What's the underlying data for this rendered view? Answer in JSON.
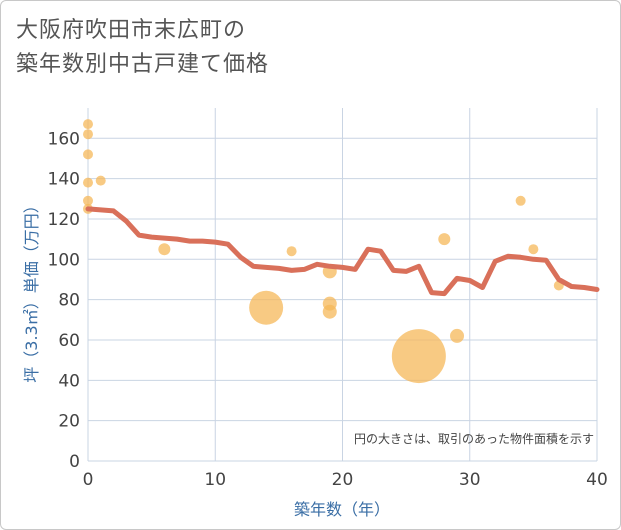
{
  "title_line1": "大阪府吹田市末広町の",
  "title_line2": "築年数別中古戸建て価格",
  "chart_data": {
    "type": "scatter",
    "title": "大阪府吹田市末広町の築年数別中古戸建て価格",
    "xlabel": "築年数（年）",
    "ylabel": "坪（3.3㎡）単価（万円）",
    "xlim": [
      0,
      40
    ],
    "ylim": [
      0,
      175
    ],
    "xticks": [
      0,
      10,
      20,
      30,
      40
    ],
    "yticks": [
      0,
      20,
      40,
      60,
      80,
      100,
      120,
      140,
      160
    ],
    "grid": true,
    "annotation": "円の大きさは、取引のあった物件面積を示す",
    "colors": {
      "bubble": "#f5b85a",
      "line": "#d9705a",
      "grid": "#c9d4e3"
    },
    "bubbles": [
      {
        "x": 0,
        "y": 167,
        "size": 5
      },
      {
        "x": 0,
        "y": 162,
        "size": 5
      },
      {
        "x": 0,
        "y": 152,
        "size": 5
      },
      {
        "x": 0,
        "y": 138,
        "size": 5
      },
      {
        "x": 1,
        "y": 139,
        "size": 5
      },
      {
        "x": 0,
        "y": 129,
        "size": 5
      },
      {
        "x": 0,
        "y": 125,
        "size": 5
      },
      {
        "x": 6,
        "y": 105,
        "size": 6
      },
      {
        "x": 14,
        "y": 76,
        "size": 17
      },
      {
        "x": 16,
        "y": 104,
        "size": 5
      },
      {
        "x": 19,
        "y": 94,
        "size": 7
      },
      {
        "x": 19,
        "y": 78,
        "size": 7
      },
      {
        "x": 19,
        "y": 74,
        "size": 7
      },
      {
        "x": 26,
        "y": 52,
        "size": 27
      },
      {
        "x": 28,
        "y": 110,
        "size": 6
      },
      {
        "x": 29,
        "y": 62,
        "size": 7
      },
      {
        "x": 34,
        "y": 129,
        "size": 5
      },
      {
        "x": 35,
        "y": 105,
        "size": 5
      },
      {
        "x": 37,
        "y": 87,
        "size": 5
      }
    ],
    "trend": [
      {
        "x": 0,
        "y": 125
      },
      {
        "x": 1,
        "y": 124.5
      },
      {
        "x": 2,
        "y": 124
      },
      {
        "x": 3,
        "y": 119
      },
      {
        "x": 4,
        "y": 112
      },
      {
        "x": 5,
        "y": 111
      },
      {
        "x": 6,
        "y": 110.5
      },
      {
        "x": 7,
        "y": 110
      },
      {
        "x": 8,
        "y": 109
      },
      {
        "x": 9,
        "y": 109
      },
      {
        "x": 10,
        "y": 108.5
      },
      {
        "x": 11,
        "y": 107.5
      },
      {
        "x": 12,
        "y": 101
      },
      {
        "x": 13,
        "y": 96.5
      },
      {
        "x": 14,
        "y": 96
      },
      {
        "x": 15,
        "y": 95.5
      },
      {
        "x": 16,
        "y": 94.5
      },
      {
        "x": 17,
        "y": 95
      },
      {
        "x": 18,
        "y": 97.5
      },
      {
        "x": 19,
        "y": 96.5
      },
      {
        "x": 20,
        "y": 96
      },
      {
        "x": 21,
        "y": 95
      },
      {
        "x": 22,
        "y": 105
      },
      {
        "x": 23,
        "y": 104
      },
      {
        "x": 24,
        "y": 94.5
      },
      {
        "x": 25,
        "y": 94
      },
      {
        "x": 26,
        "y": 96.5
      },
      {
        "x": 27,
        "y": 83.5
      },
      {
        "x": 28,
        "y": 83
      },
      {
        "x": 29,
        "y": 90.5
      },
      {
        "x": 30,
        "y": 89.5
      },
      {
        "x": 31,
        "y": 86
      },
      {
        "x": 32,
        "y": 99
      },
      {
        "x": 33,
        "y": 101.5
      },
      {
        "x": 34,
        "y": 101
      },
      {
        "x": 35,
        "y": 100
      },
      {
        "x": 36,
        "y": 99.5
      },
      {
        "x": 37,
        "y": 90
      },
      {
        "x": 38,
        "y": 86.5
      },
      {
        "x": 39,
        "y": 86
      },
      {
        "x": 40,
        "y": 85
      }
    ]
  }
}
